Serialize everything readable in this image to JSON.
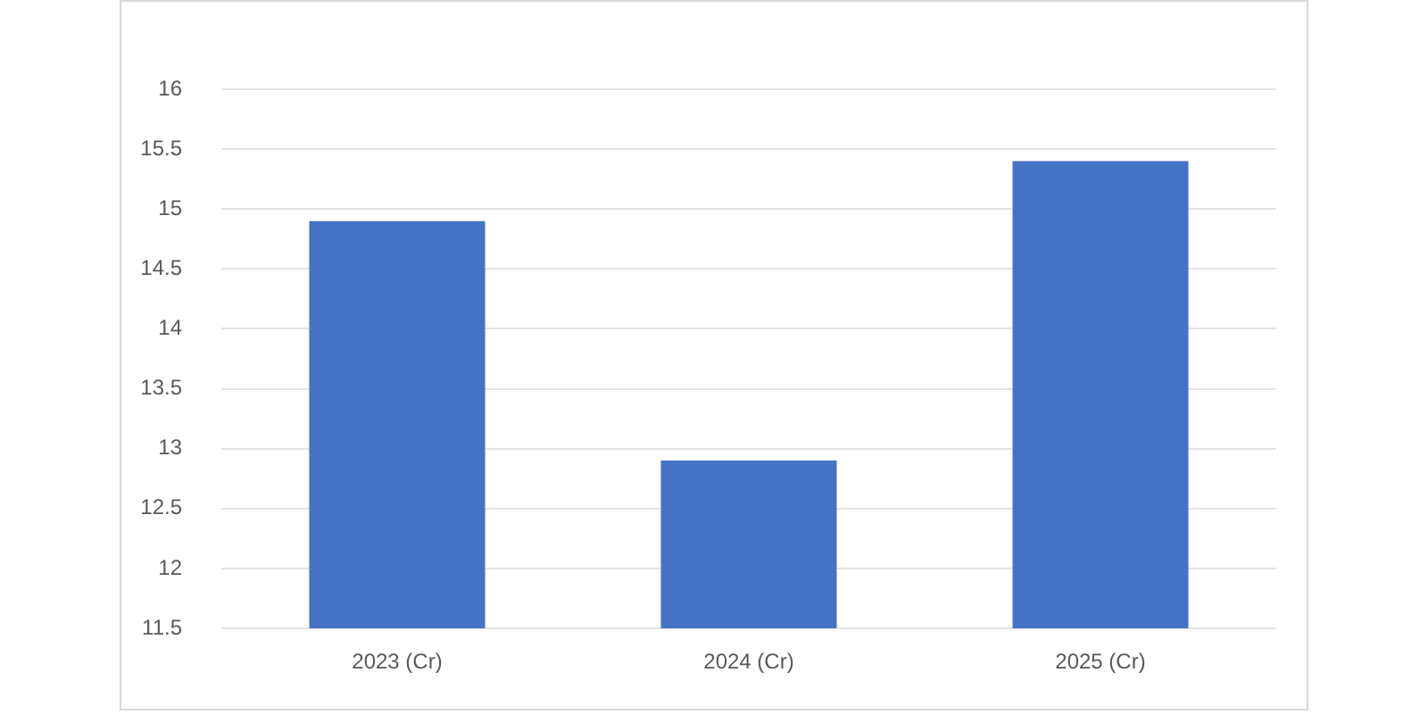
{
  "chart_data": {
    "type": "bar",
    "categories": [
      "2023 (Cr)",
      "2024 (Cr)",
      "2025 (Cr)"
    ],
    "values": [
      14.9,
      12.9,
      15.4
    ],
    "color": "#4472c4",
    "ylim": [
      11.5,
      16
    ],
    "yticks": [
      11.5,
      12,
      12.5,
      13,
      13.5,
      14,
      14.5,
      15,
      15.5,
      16
    ],
    "grid": "y"
  }
}
